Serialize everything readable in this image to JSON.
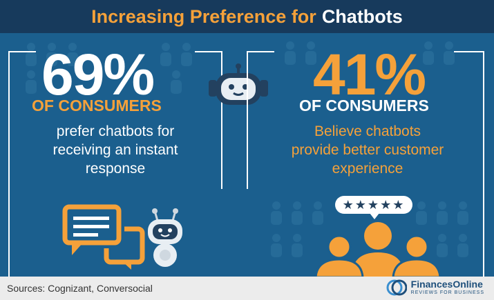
{
  "header": {
    "title_part1": "Increasing Preference for",
    "title_part2": "Chatbots"
  },
  "left_panel": {
    "percent": "69%",
    "label": "OF CONSUMERS",
    "description_lines": [
      "prefer chatbots for",
      "receiving an instant",
      "response"
    ]
  },
  "right_panel": {
    "percent": "41%",
    "label": "OF CONSUMERS",
    "description_lines": [
      "Believe chatbots",
      "provide better customer",
      "experience"
    ],
    "rating_stars": "★★★★★"
  },
  "footer": {
    "sources": "Sources: Cognizant, Conversocial",
    "brand_name": "FinancesOnline",
    "brand_tagline": "REVIEWS FOR BUSINESS"
  },
  "colors": {
    "orange": "#f5a13a",
    "blue_bg": "#1b5f8e",
    "dark_blue": "#173a5c",
    "white": "#ffffff"
  },
  "icons": [
    "robot-head-icon",
    "chat-bubbles-icon",
    "robot-icon",
    "people-icon",
    "star-rating-icon",
    "financesonline-logo-icon"
  ]
}
